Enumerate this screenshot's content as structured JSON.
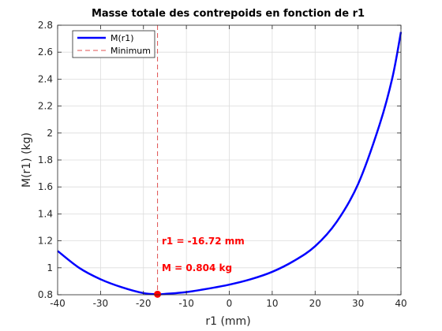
{
  "chart_data": {
    "type": "line",
    "title": "Masse totale des contrepoids en fonction de r1",
    "xlabel": "r1 (mm)",
    "ylabel": "M(r1) (kg)",
    "xlim": [
      -40,
      40
    ],
    "ylim": [
      0.8,
      2.8
    ],
    "xticks": [
      "-40",
      "-30",
      "-20",
      "-10",
      "0",
      "10",
      "20",
      "30",
      "40"
    ],
    "yticks": [
      "0.8",
      "1",
      "1.2",
      "1.4",
      "1.6",
      "1.8",
      "2",
      "2.2",
      "2.4",
      "2.6",
      "2.8"
    ],
    "grid": true,
    "legend": {
      "placement": "top-left",
      "entries": [
        "M(r1)",
        "Minimum"
      ]
    },
    "series": [
      {
        "name": "M(r1)",
        "color": "#0000ff",
        "style": "solid",
        "x": [
          -40,
          -35,
          -30,
          -25,
          -20,
          -16.72,
          -15,
          -10,
          -5,
          0,
          5,
          10,
          15,
          20,
          25,
          30,
          35,
          38,
          40
        ],
        "y": [
          1.125,
          1.0,
          0.915,
          0.855,
          0.812,
          0.804,
          0.806,
          0.82,
          0.845,
          0.875,
          0.915,
          0.97,
          1.05,
          1.16,
          1.34,
          1.62,
          2.06,
          2.41,
          2.75
        ]
      }
    ],
    "minimum": {
      "x": -16.72,
      "y": 0.804,
      "color": "#ff0000",
      "line_style": "dashed"
    },
    "annotations": [
      {
        "text": "r1 = -16.72 mm",
        "color": "#ff0000"
      },
      {
        "text": "M = 0.804 kg",
        "color": "#ff0000"
      }
    ]
  }
}
